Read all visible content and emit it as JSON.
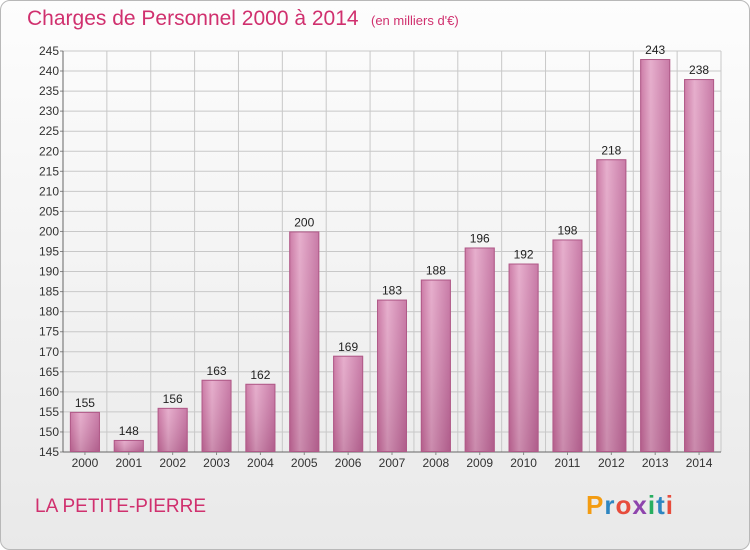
{
  "chart_data": {
    "type": "bar",
    "title": "Charges de Personnel 2000 à 2014",
    "subtitle": "(en milliers d'€)",
    "categories": [
      "2000",
      "2001",
      "2002",
      "2003",
      "2004",
      "2005",
      "2006",
      "2007",
      "2008",
      "2009",
      "2010",
      "2011",
      "2012",
      "2013",
      "2014"
    ],
    "values": [
      155,
      148,
      156,
      163,
      162,
      200,
      169,
      183,
      188,
      196,
      192,
      198,
      218,
      243,
      238
    ],
    "ylim": [
      145,
      245
    ],
    "yticks": [
      145,
      150,
      155,
      160,
      165,
      170,
      175,
      180,
      185,
      190,
      195,
      200,
      205,
      210,
      215,
      220,
      225,
      230,
      235,
      240,
      245
    ],
    "grid": true,
    "bar_color": "#c9729f"
  },
  "footer": {
    "place_name": "LA PETITE-PIERRE",
    "logo_text": "Proxiti",
    "logo_colors": [
      "#f39c12",
      "#2e86c1",
      "#e74c3c",
      "#8e44ad",
      "#27ae60",
      "#2e86c1",
      "#e74c3c"
    ]
  }
}
